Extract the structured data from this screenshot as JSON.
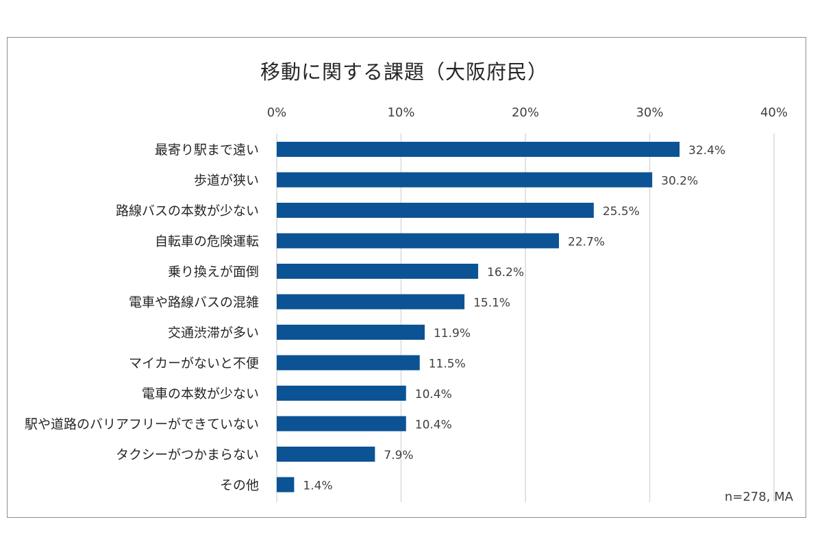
{
  "chart_data": {
    "type": "bar",
    "orientation": "horizontal",
    "title": "移動に関する課題（大阪府民）",
    "categories": [
      "最寄り駅まで遠い",
      "歩道が狭い",
      "路線バスの本数が少ない",
      "自転車の危険運転",
      "乗り換えが面倒",
      "電車や路線バスの混雑",
      "交通渋滞が多い",
      "マイカーがないと不便",
      "電車の本数が少ない",
      "駅や道路のバリアフリーができていない",
      "タクシーがつかまらない",
      "その他"
    ],
    "values": [
      32.4,
      30.2,
      25.5,
      22.7,
      16.2,
      15.1,
      11.9,
      11.5,
      10.4,
      10.4,
      7.9,
      1.4
    ],
    "value_labels": [
      "32.4%",
      "30.2%",
      "25.5%",
      "22.7%",
      "16.2%",
      "15.1%",
      "11.9%",
      "11.5%",
      "10.4%",
      "10.4%",
      "7.9%",
      "1.4%"
    ],
    "xlim": [
      0,
      40
    ],
    "x_ticks": [
      0,
      10,
      20,
      30,
      40
    ],
    "x_tick_labels": [
      "0%",
      "10%",
      "20%",
      "30%",
      "40%"
    ],
    "x_axis_position": "top",
    "grid": true,
    "legend": "none",
    "bar_color": "#0b5394",
    "footnote": "n=278, MA"
  }
}
